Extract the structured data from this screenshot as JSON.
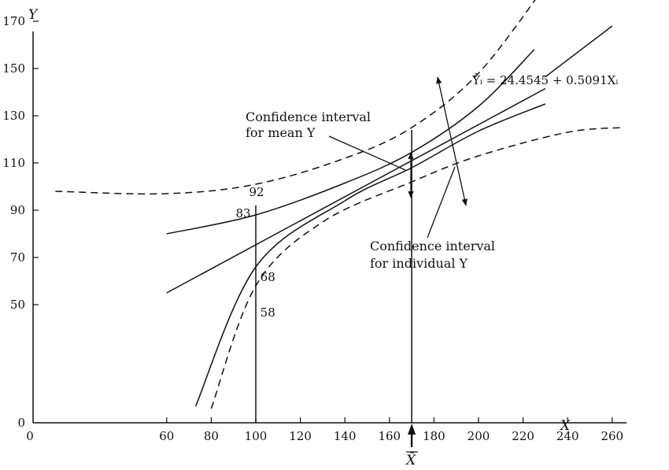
{
  "chart_data": {
    "type": "line",
    "xlabel": "X",
    "ylabel": "Y",
    "xlim": [
      0,
      270
    ],
    "ylim": [
      0,
      190
    ],
    "x_ticks": [
      0,
      60,
      80,
      100,
      120,
      140,
      160,
      180,
      200,
      220,
      240,
      260
    ],
    "y_ticks": [
      0,
      50,
      70,
      90,
      110,
      130,
      150,
      170
    ],
    "grid": false,
    "equation": "Ŷᵢ = 24.4545 + 0.5091Xᵢ",
    "mean_x": {
      "value": 170,
      "label": "X̄"
    },
    "series": [
      {
        "key": "regression",
        "style": "solid",
        "x": [
          60,
          230
        ],
        "y": [
          55,
          141.5
        ]
      },
      {
        "key": "mean_upper",
        "style": "solid",
        "x": [
          60,
          100,
          140,
          170,
          200,
          225
        ],
        "y": [
          80,
          88,
          101.5,
          114.5,
          134,
          158
        ]
      },
      {
        "key": "mean_lower",
        "style": "solid",
        "x": [
          73,
          100,
          140,
          170,
          200,
          230
        ],
        "y": [
          7,
          66,
          94,
          108,
          123.5,
          135
        ]
      },
      {
        "key": "indiv_upper",
        "style": "dashed",
        "x": [
          10,
          60,
          100,
          140,
          170,
          200,
          230
        ],
        "y": [
          98,
          97,
          101,
          112,
          125,
          148,
          185
        ]
      },
      {
        "key": "indiv_lower",
        "style": "dashed",
        "x": [
          80,
          100,
          130,
          170,
          200,
          240,
          265
        ],
        "y": [
          6,
          58,
          85,
          102,
          113,
          123,
          125
        ]
      }
    ],
    "extended_regression": {
      "x": [
        60,
        270
      ],
      "y": [
        55,
        168
      ]
    },
    "vertical_lines": [
      {
        "key": "x100",
        "x": 100,
        "y_from": 0,
        "y_to": 92
      },
      {
        "key": "xbar",
        "x": 170,
        "y_from": 0,
        "y_to": 124
      }
    ],
    "point_labels": [
      {
        "key": "p92",
        "text": "92",
        "x": 97,
        "y": 96
      },
      {
        "key": "p83",
        "text": "83",
        "x": 91,
        "y": 87
      },
      {
        "key": "p68",
        "text": "68",
        "x": 102,
        "y": 60
      },
      {
        "key": "p58",
        "text": "58",
        "x": 102,
        "y": 45
      }
    ],
    "annotations": [
      {
        "key": "mean_ci",
        "lines": [
          "Confidence interval",
          "for mean Y"
        ]
      },
      {
        "key": "indiv_ci",
        "lines": [
          "Confidence interval",
          "for individual Y"
        ]
      }
    ]
  }
}
